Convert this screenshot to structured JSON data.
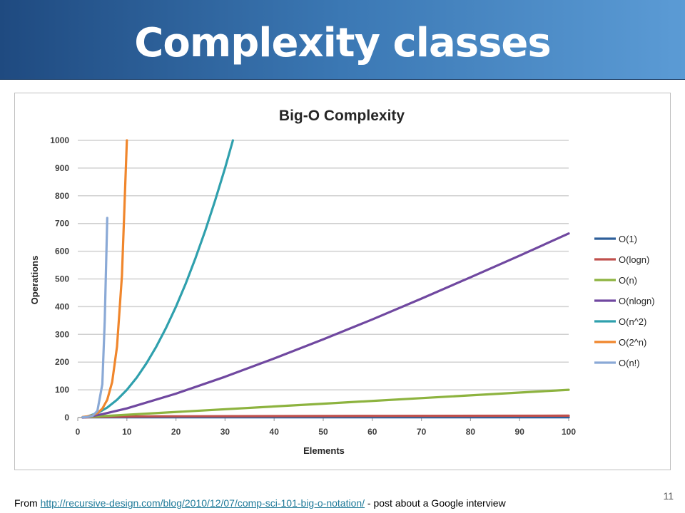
{
  "slide": {
    "title": "Complexity classes",
    "footer_prefix": "From ",
    "footer_link": "http://recursive-design.com/blog/2010/12/07/comp-sci-101-big-o-notation/",
    "footer_suffix": " - post about a Google interview",
    "page_number": "11"
  },
  "colors": {
    "title_bar_start": "#1f4a80",
    "title_bar_end": "#5b9bd5"
  },
  "chart_data": {
    "type": "line",
    "title": "Big-O Complexity",
    "xlabel": "Elements",
    "ylabel": "Operations",
    "xlim": [
      0,
      100
    ],
    "ylim": [
      0,
      1000
    ],
    "x_ticks": [
      0,
      10,
      20,
      30,
      40,
      50,
      60,
      70,
      80,
      90,
      100
    ],
    "y_ticks": [
      0,
      100,
      200,
      300,
      400,
      500,
      600,
      700,
      800,
      900,
      1000
    ],
    "grid": "horizontal",
    "legend_position": "right",
    "series": [
      {
        "name": "O(1)",
        "color": "#2e5f9a",
        "x": [
          1,
          100
        ],
        "y": [
          1,
          1
        ]
      },
      {
        "name": "O(logn)",
        "color": "#c0504d",
        "x": [
          1,
          2,
          4,
          8,
          16,
          32,
          64,
          100
        ],
        "y": [
          0,
          1,
          2,
          3,
          4,
          5,
          6,
          6.6
        ]
      },
      {
        "name": "O(n)",
        "color": "#8db33f",
        "x": [
          1,
          25,
          50,
          75,
          100
        ],
        "y": [
          1,
          25,
          50,
          75,
          100
        ]
      },
      {
        "name": "O(nlogn)",
        "color": "#7048a0",
        "x": [
          1,
          2,
          5,
          10,
          20,
          30,
          40,
          50,
          60,
          70,
          80,
          90,
          100
        ],
        "y": [
          0,
          2,
          12,
          33,
          86,
          147,
          213,
          282,
          354,
          429,
          506,
          584,
          664
        ]
      },
      {
        "name": "O(n^2)",
        "color": "#2fa0ad",
        "x": [
          1,
          2,
          4,
          6,
          8,
          10,
          12,
          14,
          16,
          18,
          20,
          22,
          24,
          26,
          28,
          30,
          31.6
        ],
        "y": [
          1,
          4,
          16,
          36,
          64,
          100,
          144,
          196,
          256,
          324,
          400,
          484,
          576,
          676,
          784,
          900,
          1000
        ]
      },
      {
        "name": "O(2^n)",
        "color": "#f0862c",
        "x": [
          1,
          2,
          3,
          4,
          5,
          6,
          7,
          8,
          9,
          10
        ],
        "y": [
          2,
          4,
          8,
          16,
          32,
          64,
          128,
          256,
          512,
          1000
        ]
      },
      {
        "name": "O(n!)",
        "color": "#8aa9d6",
        "x": [
          1,
          2,
          3,
          4,
          5,
          5.5,
          6
        ],
        "y": [
          1,
          2,
          6,
          24,
          120,
          350,
          720
        ]
      }
    ]
  }
}
